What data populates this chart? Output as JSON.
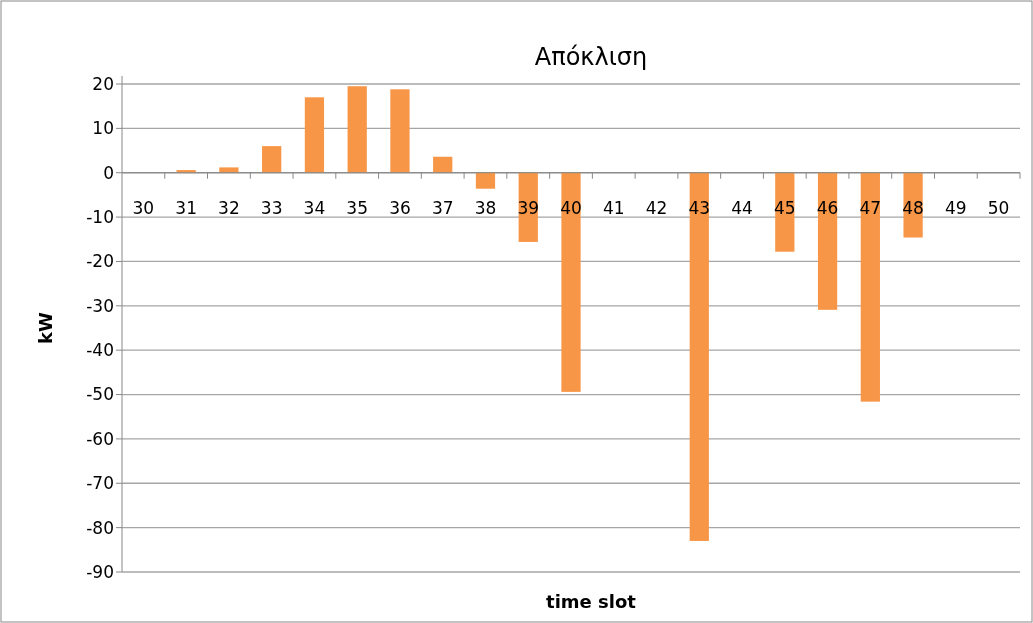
{
  "chart_data": {
    "type": "bar",
    "title": "Απόκλιση",
    "xlabel": "time slot",
    "ylabel": "kW",
    "categories": [
      "30",
      "31",
      "32",
      "33",
      "34",
      "35",
      "36",
      "37",
      "38",
      "39",
      "40",
      "41",
      "42",
      "43",
      "44",
      "45",
      "46",
      "47",
      "48",
      "49",
      "50"
    ],
    "values": [
      0,
      0.6,
      1.2,
      6,
      17,
      19.5,
      18.8,
      3.6,
      -3.6,
      -15.6,
      -49.4,
      0,
      0,
      -83,
      0,
      -17.8,
      -30.9,
      -51.6,
      -14.6,
      0,
      0
    ],
    "color": "#f79646",
    "ylim": [
      -90,
      20
    ],
    "yticks": [
      -90,
      -80,
      -70,
      -60,
      -50,
      -40,
      -30,
      -20,
      -10,
      0,
      10,
      20
    ],
    "grid": "y"
  }
}
